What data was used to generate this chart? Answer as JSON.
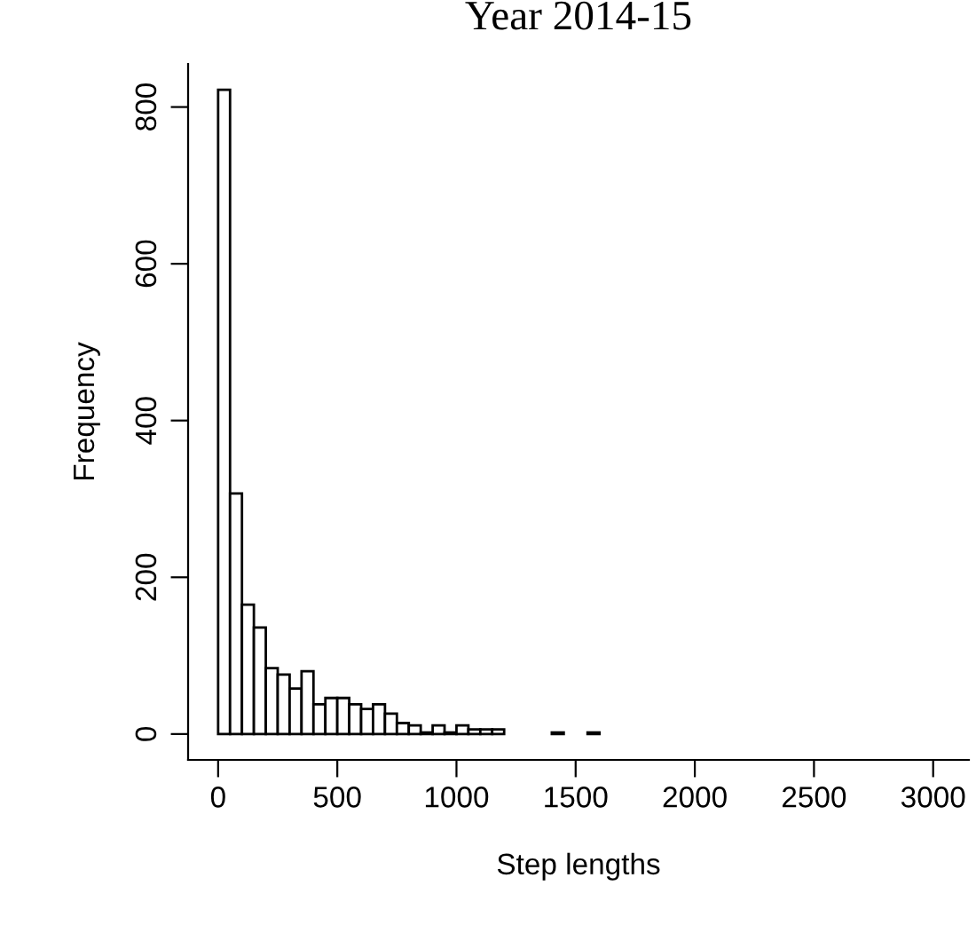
{
  "chart_data": {
    "type": "histogram",
    "title": "Year 2014-15",
    "xlabel": "Step lengths",
    "ylabel": "Frequency",
    "bins": [
      0,
      50,
      100,
      150,
      200,
      250,
      300,
      350,
      400,
      450,
      500,
      550,
      600,
      650,
      700,
      750,
      800,
      850,
      900,
      950,
      1000,
      1050,
      1100,
      1150,
      1200,
      1250,
      1300,
      1350,
      1400,
      1450,
      1500,
      1550,
      1600,
      1650,
      1700,
      1750,
      1800,
      1850,
      1900,
      1950,
      2000,
      2050,
      2100,
      2150,
      2200,
      2250,
      2300,
      2350,
      2400,
      2450,
      2500,
      2550,
      2600,
      2650,
      2700,
      2750,
      2800,
      2850,
      2900,
      2950,
      3000,
      3050,
      3100,
      3150
    ],
    "values": [
      822,
      307,
      165,
      136,
      84,
      76,
      58,
      80,
      38,
      46,
      46,
      38,
      32,
      38,
      26,
      14,
      11,
      2,
      11,
      2,
      11,
      6,
      6,
      6,
      0,
      0,
      0,
      0,
      2,
      0,
      0,
      2,
      0,
      0,
      0,
      0,
      0,
      0,
      0,
      0,
      0,
      0,
      0,
      0,
      0,
      0,
      0,
      0,
      0,
      0,
      0,
      0,
      0,
      0,
      0,
      0,
      0,
      0,
      0,
      0,
      0,
      0,
      0
    ],
    "color": "#ffffff",
    "xlim": [
      -126,
      3150
    ],
    "ylim": [
      -33,
      855
    ],
    "xticks": [
      0,
      500,
      1000,
      1500,
      2000,
      2500,
      3000
    ],
    "yticks": [
      0,
      200,
      400,
      600,
      800
    ],
    "grid": false
  }
}
